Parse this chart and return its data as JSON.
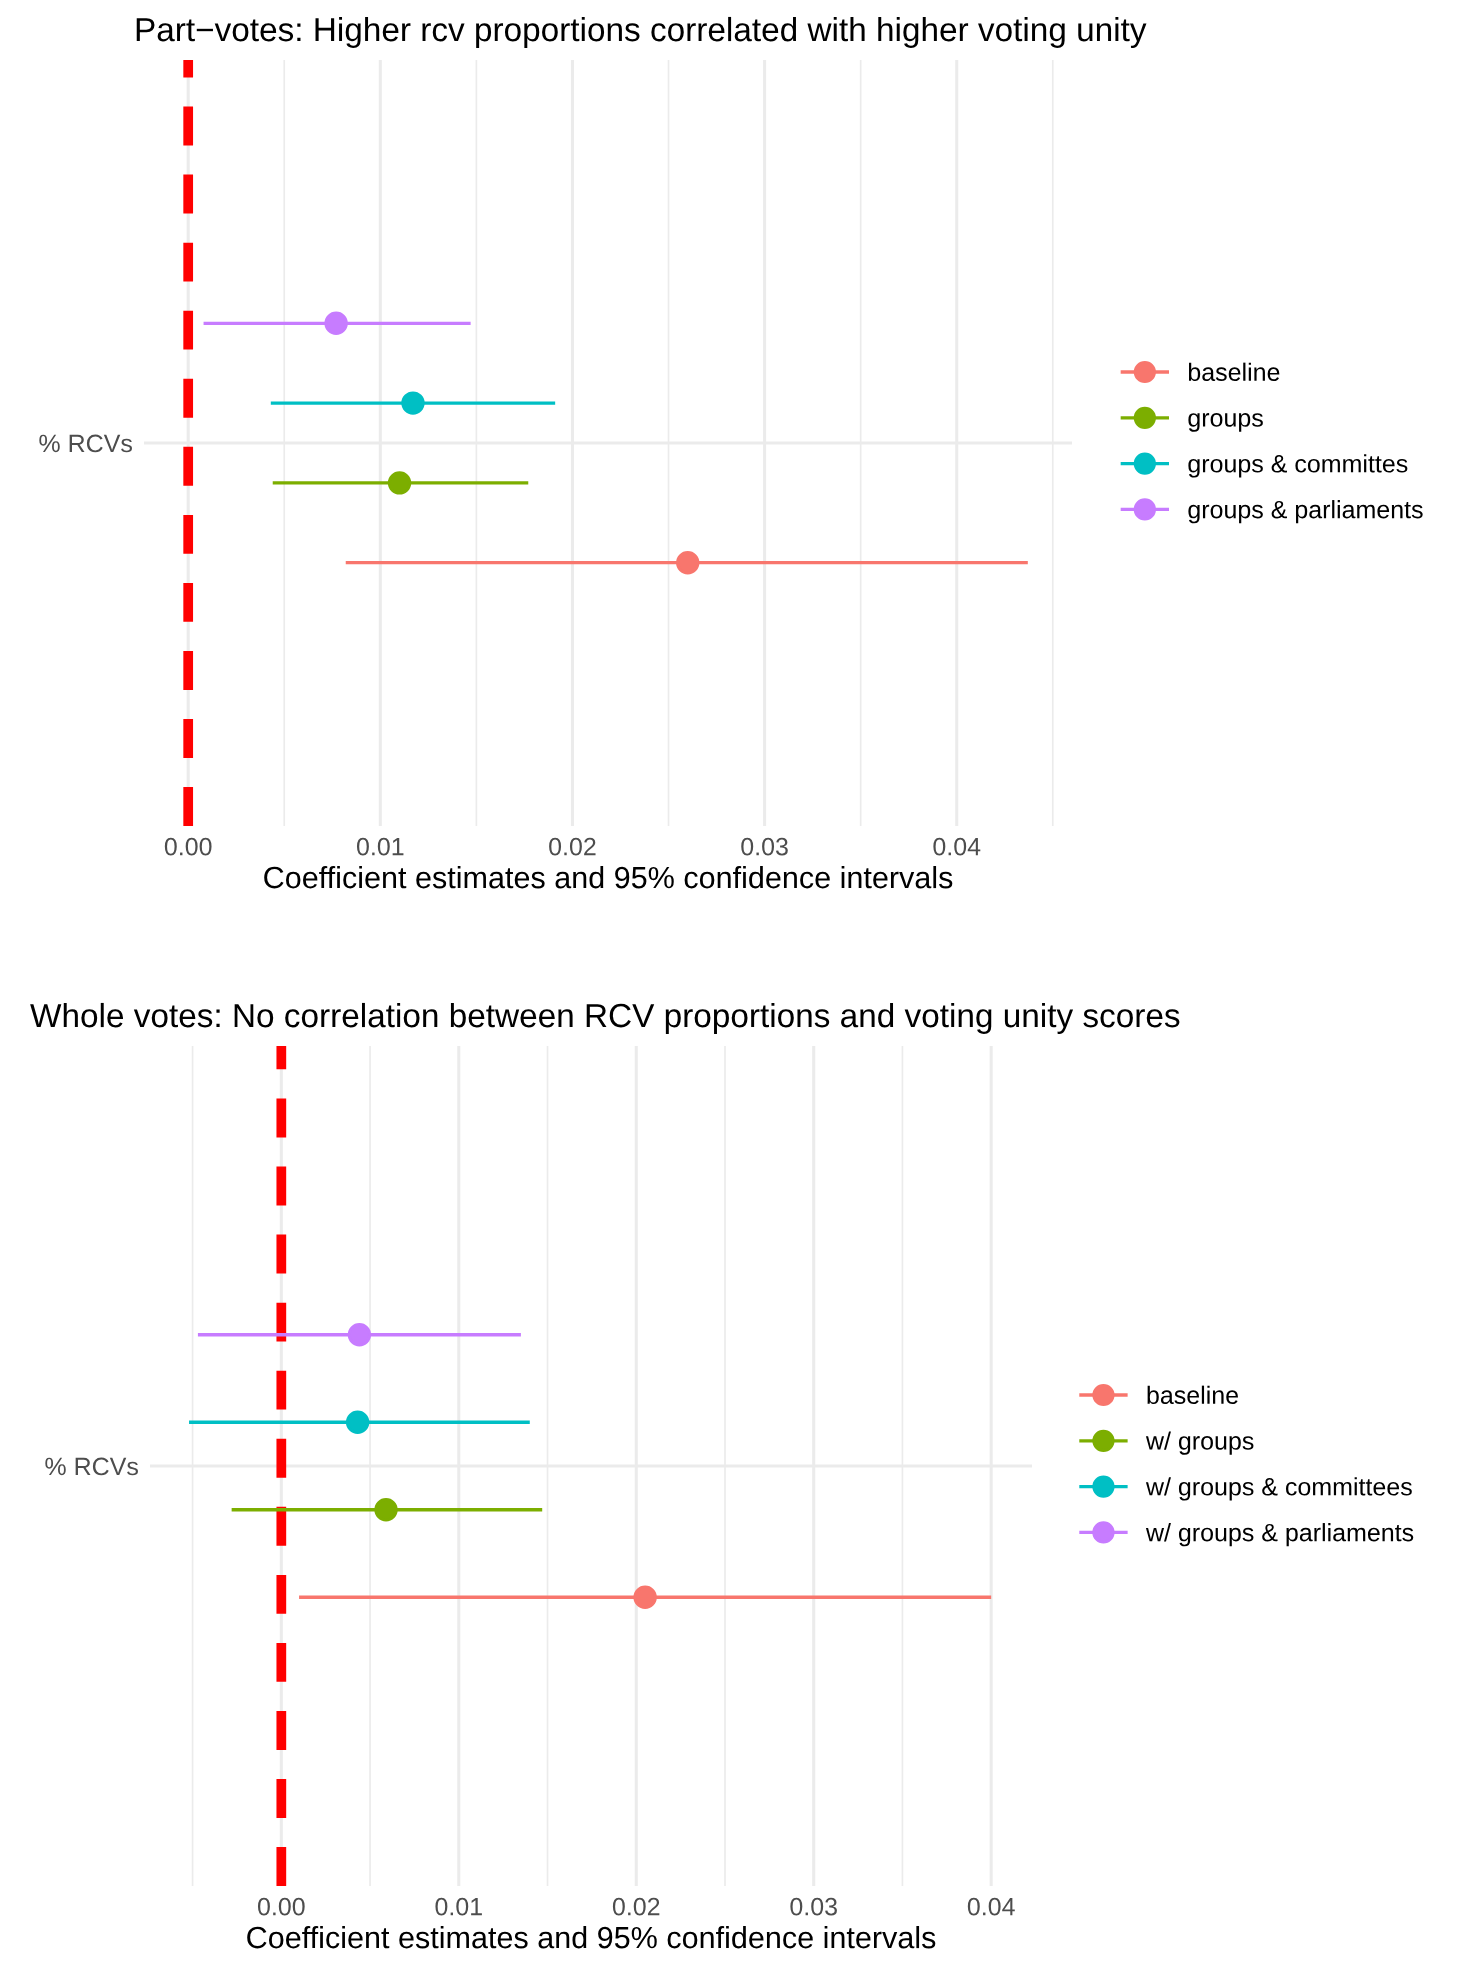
{
  "chart_data": [
    {
      "type": "scatter",
      "orientation": "horizontal",
      "title": "Part−votes: Higher rcv proportions correlated with higher voting unity",
      "xlabel": "Coefficient estimates and 95% confidence intervals",
      "categories": [
        "% RCVs"
      ],
      "series": [
        {
          "name": "baseline",
          "color": "#f8766d",
          "values": [
            0.026
          ],
          "errors": [
            [
              0.0082,
              0.0437
            ]
          ]
        },
        {
          "name": "groups",
          "color": "#7cae00",
          "values": [
            0.011
          ],
          "errors": [
            [
              0.0044,
              0.0177
            ]
          ]
        },
        {
          "name": "groups & committes",
          "color": "#00bfc4",
          "values": [
            0.0117
          ],
          "errors": [
            [
              0.0043,
              0.0191
            ]
          ]
        },
        {
          "name": "groups & parliaments",
          "color": "#c77cff",
          "values": [
            0.0077
          ],
          "errors": [
            [
              0.0008,
              0.0147
            ]
          ]
        }
      ],
      "xlim": [
        -0.0023,
        0.046
      ],
      "xticks": [
        {
          "value": 0,
          "label": "0.00"
        },
        {
          "value": 0.005,
          "label": null
        },
        {
          "value": 0.01,
          "label": "0.01"
        },
        {
          "value": 0.015,
          "label": null
        },
        {
          "value": 0.02,
          "label": "0.02"
        },
        {
          "value": 0.025,
          "label": null
        },
        {
          "value": 0.03,
          "label": "0.03"
        },
        {
          "value": 0.035,
          "label": null
        },
        {
          "value": 0.04,
          "label": "0.04"
        },
        {
          "value": 0.045,
          "label": null
        }
      ],
      "ref_lines": [
        {
          "axis": "x",
          "value": 0,
          "color": "#ff0000",
          "line_style": "dashed"
        }
      ],
      "grid": true,
      "legend": "right",
      "marker": "circle",
      "line_style": "solid"
    },
    {
      "type": "scatter",
      "orientation": "horizontal",
      "title": "Whole votes: No correlation between RCV proportions and voting unity scores",
      "xlabel": "Coefficient estimates and 95% confidence intervals",
      "categories": [
        "% RCVs"
      ],
      "series": [
        {
          "name": "baseline",
          "color": "#f8766d",
          "values": [
            0.0205
          ],
          "errors": [
            [
              0.001,
              0.04
            ]
          ]
        },
        {
          "name": "w/ groups",
          "color": "#7cae00",
          "values": [
            0.0059
          ],
          "errors": [
            [
              -0.0028,
              0.0147
            ]
          ]
        },
        {
          "name": "w/ groups & committees",
          "color": "#00bfc4",
          "values": [
            0.0043
          ],
          "errors": [
            [
              -0.0052,
              0.014
            ]
          ]
        },
        {
          "name": "w/ groups & parliaments",
          "color": "#c77cff",
          "values": [
            0.0044
          ],
          "errors": [
            [
              -0.0047,
              0.0135
            ]
          ]
        }
      ],
      "xlim": [
        -0.0074,
        0.0423
      ],
      "xticks": [
        {
          "value": -0.005,
          "label": null
        },
        {
          "value": 0,
          "label": "0.00"
        },
        {
          "value": 0.005,
          "label": null
        },
        {
          "value": 0.01,
          "label": "0.01"
        },
        {
          "value": 0.015,
          "label": null
        },
        {
          "value": 0.02,
          "label": "0.02"
        },
        {
          "value": 0.025,
          "label": null
        },
        {
          "value": 0.03,
          "label": "0.03"
        },
        {
          "value": 0.035,
          "label": null
        },
        {
          "value": 0.04,
          "label": "0.04"
        }
      ],
      "ref_lines": [
        {
          "axis": "x",
          "value": 0,
          "color": "#ff0000",
          "line_style": "dashed"
        }
      ],
      "grid": true,
      "legend": "right",
      "marker": "circle",
      "line_style": "solid"
    }
  ]
}
